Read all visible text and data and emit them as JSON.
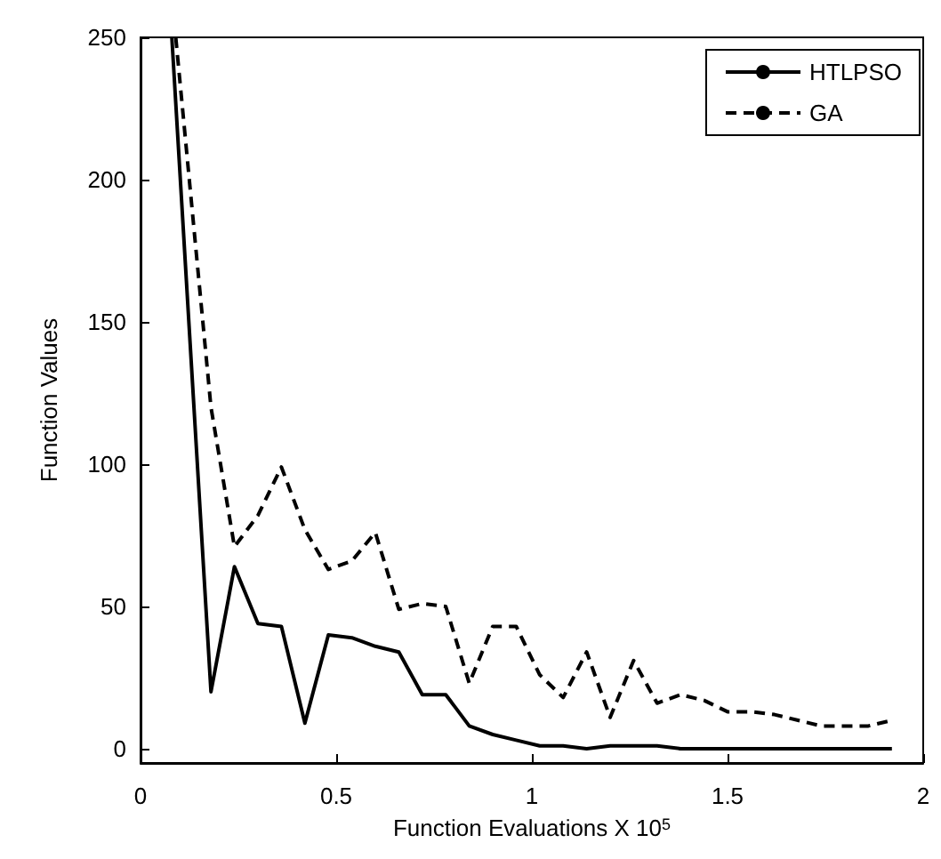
{
  "chart_data": {
    "type": "line",
    "xlabel": "Function Evaluations X 10$^{5}$",
    "ylabel": "Function Values",
    "xlim": [
      0,
      2
    ],
    "xticks": [
      0,
      0.5,
      1,
      1.5,
      2
    ],
    "ylim": [
      -5,
      250
    ],
    "yticks": [
      0,
      50,
      100,
      150,
      200,
      250
    ],
    "grid": false,
    "legend": "top right",
    "marker": "none",
    "series": [
      {
        "name": "HTLPSO",
        "color": "#000000",
        "line_style": "solid",
        "x": [
          0.08,
          0.18,
          0.24,
          0.3,
          0.36,
          0.42,
          0.48,
          0.54,
          0.6,
          0.66,
          0.72,
          0.78,
          0.84,
          0.9,
          0.96,
          1.02,
          1.08,
          1.14,
          1.2,
          1.26,
          1.32,
          1.38,
          1.44,
          1.5,
          1.56,
          1.62,
          1.68,
          1.74,
          1.8,
          1.86,
          1.92
        ],
        "values": [
          250,
          20,
          64,
          44,
          43,
          9,
          40,
          39,
          36,
          34,
          19,
          19,
          8,
          5,
          3,
          1,
          1,
          0,
          1,
          1,
          1,
          0,
          0,
          0,
          0,
          0,
          0,
          0,
          0,
          0,
          0
        ]
      },
      {
        "name": "GA",
        "color": "#000000",
        "line_style": "dashed",
        "x": [
          0.09,
          0.18,
          0.24,
          0.3,
          0.36,
          0.42,
          0.48,
          0.54,
          0.6,
          0.66,
          0.72,
          0.78,
          0.84,
          0.9,
          0.96,
          1.02,
          1.08,
          1.14,
          1.2,
          1.26,
          1.32,
          1.38,
          1.44,
          1.5,
          1.56,
          1.62,
          1.68,
          1.74,
          1.8,
          1.86,
          1.92
        ],
        "values": [
          250,
          120,
          71,
          82,
          99,
          77,
          63,
          66,
          76,
          49,
          51,
          50,
          23,
          43,
          43,
          26,
          18,
          34,
          11,
          31,
          16,
          19,
          17,
          13,
          13,
          12,
          10,
          8,
          8,
          8,
          10
        ]
      }
    ]
  }
}
